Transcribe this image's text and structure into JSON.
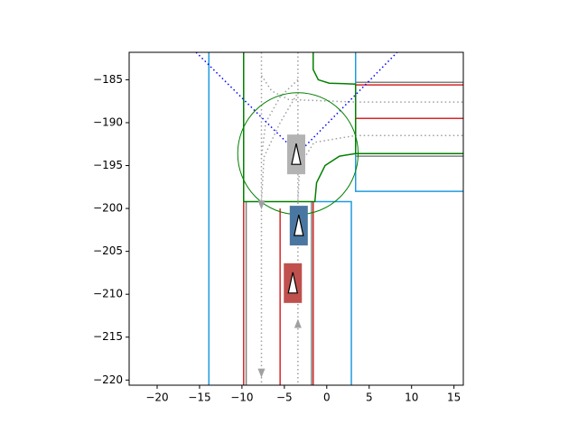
{
  "chart_data": {
    "type": "scene",
    "xlim": [
      -23.3,
      16.1
    ],
    "ylim": [
      -220.6,
      -181.8
    ],
    "xticks": [
      {
        "value": -20,
        "label": "−20"
      },
      {
        "value": -15,
        "label": "−15"
      },
      {
        "value": -10,
        "label": "−10"
      },
      {
        "value": -5,
        "label": "−5"
      },
      0,
      5,
      10,
      15
    ],
    "yticks": [
      {
        "value": -185,
        "label": "−185"
      },
      {
        "value": -190,
        "label": "−190"
      },
      {
        "value": -195,
        "label": "−195"
      },
      {
        "value": -200,
        "label": "−200"
      },
      {
        "value": -205,
        "label": "−205"
      },
      {
        "value": -210,
        "label": "−210"
      },
      {
        "value": -215,
        "label": "−215"
      },
      {
        "value": -220,
        "label": "−220"
      }
    ],
    "lanes": [
      {
        "color": "#1f9be0",
        "style": "solid",
        "points": [
          [
            -13.9,
            -181.8
          ],
          [
            -13.9,
            -220.6
          ]
        ]
      },
      {
        "color": "#1f9be0",
        "style": "solid",
        "points": [
          [
            3.4,
            -181.8
          ],
          [
            3.4,
            -198
          ],
          [
            16.1,
            -198
          ]
        ]
      },
      {
        "color": "#1f9be0",
        "style": "solid",
        "points": [
          [
            -1.4,
            -199.2
          ],
          [
            2.9,
            -199.2
          ],
          [
            2.9,
            -220.6
          ]
        ]
      },
      {
        "color": "#808080",
        "style": "solid",
        "points": [
          [
            -9.5,
            -199.2
          ],
          [
            -9.5,
            -220.6
          ]
        ]
      },
      {
        "color": "#808080",
        "style": "solid",
        "points": [
          [
            -1.8,
            -199.2
          ],
          [
            -1.8,
            -220.6
          ]
        ]
      },
      {
        "color": "#808080",
        "style": "solid",
        "points": [
          [
            3.4,
            -185.3
          ],
          [
            16.1,
            -185.3
          ]
        ]
      },
      {
        "color": "#808080",
        "style": "solid",
        "points": [
          [
            3.4,
            -193.9
          ],
          [
            16.1,
            -193.9
          ]
        ]
      },
      {
        "color": "#d62728",
        "style": "solid",
        "points": [
          [
            -9.8,
            -199.2
          ],
          [
            -9.8,
            -220.6
          ]
        ]
      },
      {
        "color": "#d62728",
        "style": "solid",
        "points": [
          [
            -5.5,
            -200
          ],
          [
            -5.5,
            -220.6
          ]
        ]
      },
      {
        "color": "#d62728",
        "style": "solid",
        "points": [
          [
            -1.6,
            -199.2
          ],
          [
            -1.6,
            -220.6
          ]
        ]
      },
      {
        "color": "#d62728",
        "style": "solid",
        "points": [
          [
            3.4,
            -185.6
          ],
          [
            16.1,
            -185.6
          ]
        ]
      },
      {
        "color": "#d62728",
        "style": "solid",
        "points": [
          [
            3.4,
            -189.5
          ],
          [
            16.1,
            -189.5
          ]
        ]
      },
      {
        "color": "#d62728",
        "style": "solid",
        "points": [
          [
            3.4,
            -193.6
          ],
          [
            16.1,
            -193.6
          ]
        ]
      },
      {
        "color": "#008000",
        "style": "solid",
        "points": [
          [
            -9.8,
            -181.8
          ],
          [
            -9.8,
            -199.2
          ],
          [
            -1.4,
            -199.2
          ],
          [
            -1.2,
            -197
          ],
          [
            -0.2,
            -195
          ],
          [
            1.5,
            -193.9
          ],
          [
            3.4,
            -193.6
          ]
        ]
      },
      {
        "color": "#008000",
        "style": "solid",
        "points": [
          [
            -1.6,
            -181.8
          ],
          [
            -1.6,
            -183.8
          ],
          [
            -1.0,
            -185
          ],
          [
            0.3,
            -185.4
          ],
          [
            3.4,
            -185.5
          ],
          [
            3.4,
            -193.6
          ],
          [
            16.1,
            -193.6
          ]
        ]
      },
      {
        "color": "#a0a0a0",
        "style": "dotted",
        "points": [
          [
            -7.7,
            -181.8
          ],
          [
            -7.7,
            -220.6
          ]
        ]
      },
      {
        "color": "#a0a0a0",
        "style": "dotted",
        "points": [
          [
            -3.4,
            -181.8
          ],
          [
            -3.4,
            -220.6
          ]
        ]
      },
      {
        "color": "#a0a0a0",
        "style": "dotted",
        "points": [
          [
            3.4,
            -187.6
          ],
          [
            16.1,
            -187.6
          ]
        ]
      },
      {
        "color": "#a0a0a0",
        "style": "dotted",
        "points": [
          [
            3.4,
            -191.5
          ],
          [
            16.1,
            -191.5
          ]
        ]
      },
      {
        "color": "#a0a0a0",
        "style": "dotted",
        "points": [
          [
            -7.7,
            -184.5
          ],
          [
            -6.5,
            -186.3
          ],
          [
            -4.5,
            -187.3
          ],
          [
            3.4,
            -187.6
          ]
        ]
      },
      {
        "color": "#a0a0a0",
        "style": "dotted",
        "points": [
          [
            -3.4,
            -199.2
          ],
          [
            -3.2,
            -195
          ],
          [
            -1.5,
            -192.3
          ],
          [
            3.4,
            -191.5
          ]
        ]
      },
      {
        "color": "#a0a0a0",
        "style": "dotted",
        "points": [
          [
            -7.7,
            -199.2
          ],
          [
            -7.4,
            -194
          ],
          [
            -5.5,
            -190
          ],
          [
            -3.4,
            -186.5
          ]
        ]
      },
      {
        "color": "#a0a0a0",
        "style": "dotted",
        "points": [
          [
            -3.4,
            -185
          ],
          [
            -5.5,
            -187
          ],
          [
            -7.2,
            -190
          ],
          [
            -7.7,
            -194
          ]
        ]
      },
      {
        "color": "#0000ff",
        "style": "dotted",
        "points": [
          [
            -15.4,
            -181.8
          ],
          [
            -3.4,
            -193.6
          ],
          [
            8.3,
            -181.8
          ]
        ]
      }
    ],
    "circles": [
      {
        "cx": -3.4,
        "cy": -193.6,
        "r": 7.1,
        "color": "#008000"
      }
    ],
    "arrows": [
      {
        "x": -7.7,
        "y": -199.6,
        "dir": "down"
      },
      {
        "x": -7.7,
        "y": -219.2,
        "dir": "down"
      },
      {
        "x": -3.4,
        "y": -213.4,
        "dir": "up"
      }
    ],
    "vehicles": [
      {
        "x": -3.6,
        "y": -193.7,
        "color": "#b3b3b3"
      },
      {
        "x": -3.3,
        "y": -202.0,
        "color": "#4a77a1"
      },
      {
        "x": -4.0,
        "y": -208.7,
        "color": "#c0504d"
      }
    ]
  }
}
